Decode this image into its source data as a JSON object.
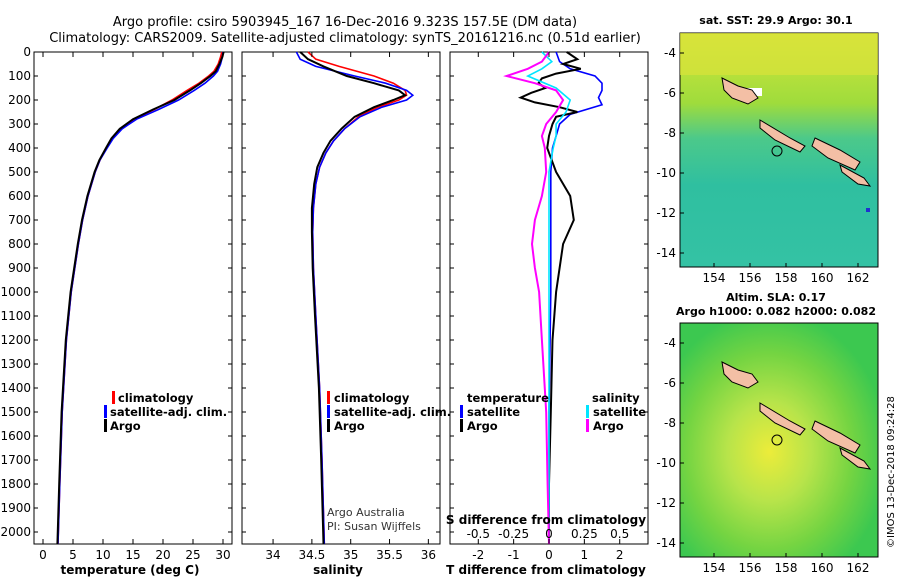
{
  "title_line1": "Argo profile: csiro 5903945_167 16-Dec-2016 9.323S 157.5E (DM data)",
  "title_line2": "Climatology: CARS2009. Satellite-adjusted climatology: synTS_20161216.nc (0.51d earlier)",
  "depth_ticks": [
    "0",
    "100",
    "200",
    "300",
    "400",
    "500",
    "600",
    "700",
    "800",
    "900",
    "1000",
    "1100",
    "1200",
    "1300",
    "1400",
    "1500",
    "1600",
    "1700",
    "1800",
    "1900",
    "2000"
  ],
  "colors": {
    "climatology": "#ff0000",
    "satellite": "#0000ff",
    "argo": "#000000",
    "s_satellite": "#00e5ff",
    "s_argo": "#ff00ff"
  },
  "legend_main": {
    "climatology": "climatology",
    "satellite": "satellite-adj. clim.",
    "argo": "Argo"
  },
  "legend_diff": {
    "temperature": "temperature",
    "salinity": "salinity",
    "satellite": "satellite",
    "argo": "Argo"
  },
  "credit_line1": "Argo Australia",
  "credit_line2": "PI: Susan Wijffels",
  "sst_title": "sat. SST: 29.9 Argo: 30.1",
  "sla_title1": "Altim. SLA: 0.17",
  "sla_title2": "Argo h1000: 0.082 h2000: 0.082",
  "map_lon_ticks": [
    "154",
    "156",
    "158",
    "160",
    "162"
  ],
  "map_lat_ticks": [
    "-4",
    "-6",
    "-8",
    "-10",
    "-12",
    "-14"
  ],
  "imos_stamp": "©IMOS 13-Dec-2018 09:24:28",
  "chart_data": [
    {
      "type": "line",
      "title": "",
      "xlabel": "temperature (deg C)",
      "ylabel": "",
      "xlim": [
        -1.5,
        31.5
      ],
      "ylim": [
        2050,
        0
      ],
      "xticks": [
        "0",
        "5",
        "10",
        "15",
        "20",
        "25",
        "30"
      ],
      "series": [
        {
          "name": "climatology",
          "depth": [
            0,
            20,
            50,
            80,
            100,
            130,
            160,
            200,
            240,
            280,
            320,
            360,
            400,
            450,
            500,
            600,
            700,
            800,
            1000,
            1200,
            1500,
            1800,
            2050
          ],
          "values": [
            29.8,
            29.6,
            29.2,
            28.5,
            27.6,
            26.0,
            24.0,
            21.5,
            18.5,
            15.2,
            13.0,
            11.6,
            10.6,
            9.5,
            8.7,
            7.5,
            6.6,
            5.9,
            4.7,
            3.9,
            3.2,
            2.8,
            2.5
          ]
        },
        {
          "name": "satellite-adj. clim.",
          "depth": [
            0,
            20,
            50,
            80,
            100,
            130,
            160,
            200,
            240,
            280,
            320,
            360,
            400,
            450,
            500,
            600,
            700,
            800,
            1000,
            1200,
            1500,
            1800,
            2050
          ],
          "values": [
            30.0,
            29.9,
            29.6,
            29.1,
            28.4,
            27.0,
            25.2,
            22.6,
            19.2,
            15.6,
            13.2,
            11.7,
            10.7,
            9.5,
            8.7,
            7.5,
            6.6,
            5.9,
            4.7,
            3.9,
            3.2,
            2.8,
            2.5
          ]
        },
        {
          "name": "Argo",
          "depth": [
            0,
            20,
            50,
            80,
            100,
            130,
            160,
            200,
            240,
            280,
            320,
            360,
            400,
            450,
            500,
            600,
            700,
            800,
            1000,
            1200,
            1500,
            1800,
            2050
          ],
          "values": [
            30.1,
            29.9,
            29.4,
            28.8,
            27.9,
            26.3,
            24.5,
            21.9,
            18.3,
            15.0,
            12.8,
            11.4,
            10.5,
            9.4,
            8.6,
            7.4,
            6.5,
            5.8,
            4.6,
            3.8,
            3.1,
            2.7,
            2.4
          ]
        }
      ]
    },
    {
      "type": "line",
      "title": "",
      "xlabel": "salinity",
      "ylabel": "",
      "xlim": [
        33.6,
        36.15
      ],
      "ylim": [
        2050,
        0
      ],
      "xticks": [
        "34",
        "34.5",
        "35",
        "35.5",
        "36"
      ],
      "series": [
        {
          "name": "climatology",
          "depth": [
            0,
            30,
            60,
            100,
            130,
            160,
            180,
            200,
            230,
            270,
            320,
            370,
            420,
            480,
            550,
            650,
            750,
            900,
            1100,
            1400,
            1700,
            2050
          ],
          "values": [
            34.45,
            34.55,
            34.85,
            35.3,
            35.55,
            35.7,
            35.72,
            35.62,
            35.35,
            35.1,
            34.92,
            34.78,
            34.68,
            34.6,
            34.55,
            34.52,
            34.51,
            34.52,
            34.55,
            34.6,
            34.63,
            34.66
          ]
        },
        {
          "name": "satellite-adj. clim.",
          "depth": [
            0,
            30,
            60,
            100,
            130,
            160,
            180,
            200,
            230,
            270,
            320,
            370,
            420,
            480,
            550,
            650,
            750,
            900,
            1100,
            1400,
            1700,
            2050
          ],
          "values": [
            34.3,
            34.35,
            34.55,
            35.05,
            35.45,
            35.72,
            35.8,
            35.72,
            35.4,
            35.12,
            34.92,
            34.78,
            34.68,
            34.6,
            34.55,
            34.52,
            34.51,
            34.52,
            34.55,
            34.6,
            34.63,
            34.66
          ]
        },
        {
          "name": "Argo",
          "depth": [
            0,
            30,
            60,
            100,
            130,
            160,
            180,
            200,
            230,
            270,
            320,
            370,
            420,
            480,
            550,
            650,
            750,
            900,
            1100,
            1400,
            1700,
            2050
          ],
          "values": [
            34.35,
            34.45,
            34.65,
            34.95,
            35.3,
            35.62,
            35.7,
            35.55,
            35.3,
            35.05,
            34.88,
            34.74,
            34.65,
            34.57,
            34.53,
            34.5,
            34.5,
            34.51,
            34.54,
            34.59,
            34.62,
            34.65
          ]
        }
      ]
    },
    {
      "type": "line",
      "title": "",
      "xlabel": "T difference from climatology",
      "ylabel": "",
      "xlim": [
        -2.8,
        2.8
      ],
      "ylim": [
        2050,
        0
      ],
      "xticks": [
        "-2",
        "-1",
        "0",
        "1",
        "2"
      ],
      "top_xlabel": "S difference from climatology",
      "top_xticks": [
        "-0.5",
        "-0.25",
        "0",
        "0.25",
        "0.5"
      ],
      "series": [
        {
          "name": "temperature satellite",
          "depth": [
            0,
            40,
            70,
            100,
            130,
            160,
            190,
            220,
            260,
            300,
            350,
            400,
            500,
            700,
            1000,
            1500,
            2050
          ],
          "values": [
            0.2,
            0.3,
            0.6,
            1.3,
            1.5,
            1.5,
            1.4,
            1.5,
            0.6,
            0.3,
            0.2,
            0.1,
            0.05,
            0.05,
            0.05,
            0.0,
            0.0
          ]
        },
        {
          "name": "temperature Argo",
          "depth": [
            0,
            30,
            50,
            70,
            90,
            110,
            130,
            150,
            170,
            190,
            210,
            230,
            250,
            270,
            300,
            350,
            400,
            500,
            600,
            700,
            800,
            900,
            1000,
            1200,
            1500,
            1800,
            2050
          ],
          "values": [
            0.5,
            0.8,
            0.4,
            0.9,
            0.2,
            -0.2,
            -0.3,
            -0.1,
            -0.5,
            -0.8,
            -0.4,
            0.3,
            0.8,
            0.2,
            0.1,
            0.0,
            -0.05,
            0.2,
            0.6,
            0.7,
            0.4,
            0.3,
            0.2,
            0.1,
            0.05,
            0.0,
            0.0
          ]
        },
        {
          "name": "salinity satellite",
          "depth": [
            0,
            40,
            70,
            100,
            150,
            200,
            250,
            300,
            350,
            400,
            500,
            700,
            1000,
            1500,
            2050
          ],
          "values": [
            -0.05,
            0.02,
            -0.05,
            -0.15,
            0.05,
            0.15,
            0.12,
            0.05,
            0.05,
            0.03,
            0.0,
            0.0,
            0.0,
            0.0,
            0.0
          ]
        },
        {
          "name": "salinity Argo",
          "depth": [
            0,
            40,
            70,
            100,
            130,
            160,
            200,
            250,
            300,
            350,
            400,
            500,
            600,
            700,
            800,
            900,
            1000,
            1200,
            1500,
            1800,
            2050
          ],
          "values": [
            0.0,
            -0.05,
            -0.15,
            -0.3,
            -0.1,
            0.05,
            0.1,
            0.05,
            -0.02,
            -0.05,
            -0.03,
            -0.02,
            -0.05,
            -0.1,
            -0.12,
            -0.1,
            -0.07,
            -0.05,
            -0.02,
            -0.01,
            0.0
          ]
        }
      ]
    }
  ]
}
